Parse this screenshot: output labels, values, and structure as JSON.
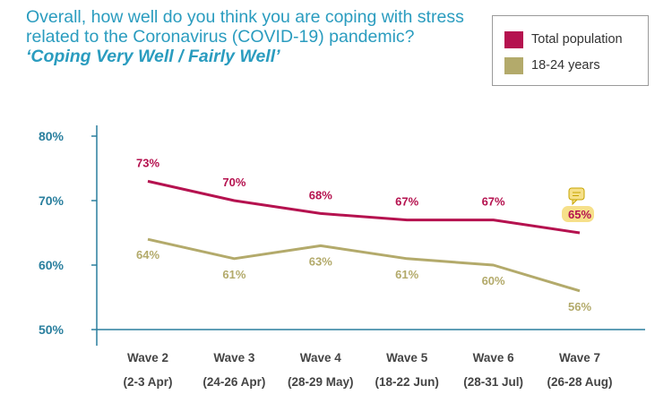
{
  "chart_data": {
    "type": "line",
    "title": "Overall, how well do you think you are coping with stress related to the Coronavirus (COVID-19) pandemic?",
    "title_emphasis": "‘Coping Very Well / Fairly Well’",
    "categories": [
      "Wave 2",
      "Wave 3",
      "Wave 4",
      "Wave 5",
      "Wave 6",
      "Wave 7"
    ],
    "category_dates": [
      "(2-3 Apr)",
      "(24-26 Apr)",
      "(28-29 May)",
      "(18-22 Jun)",
      "(28-31 Jul)",
      "(26-28 Aug)"
    ],
    "series": [
      {
        "name": "Total population",
        "color": "#b5124f",
        "values": [
          73,
          70,
          68,
          67,
          67,
          65
        ],
        "labels": [
          "73%",
          "70%",
          "68%",
          "67%",
          "67%",
          "65%"
        ]
      },
      {
        "name": "18-24 years",
        "color": "#b3aa6b",
        "values": [
          64,
          61,
          63,
          61,
          60,
          56
        ],
        "labels": [
          "64%",
          "61%",
          "63%",
          "61%",
          "60%",
          "56%"
        ]
      }
    ],
    "ylim": [
      50,
      80
    ],
    "yticks": [
      50,
      60,
      70,
      80
    ],
    "ytick_labels": [
      "50%",
      "60%",
      "70%",
      "80%"
    ],
    "grid": false,
    "legend_position": "top-right",
    "highlight": {
      "series": "Total population",
      "category": "Wave 7",
      "icon": "comment-icon",
      "color": "#f6e08a"
    }
  }
}
